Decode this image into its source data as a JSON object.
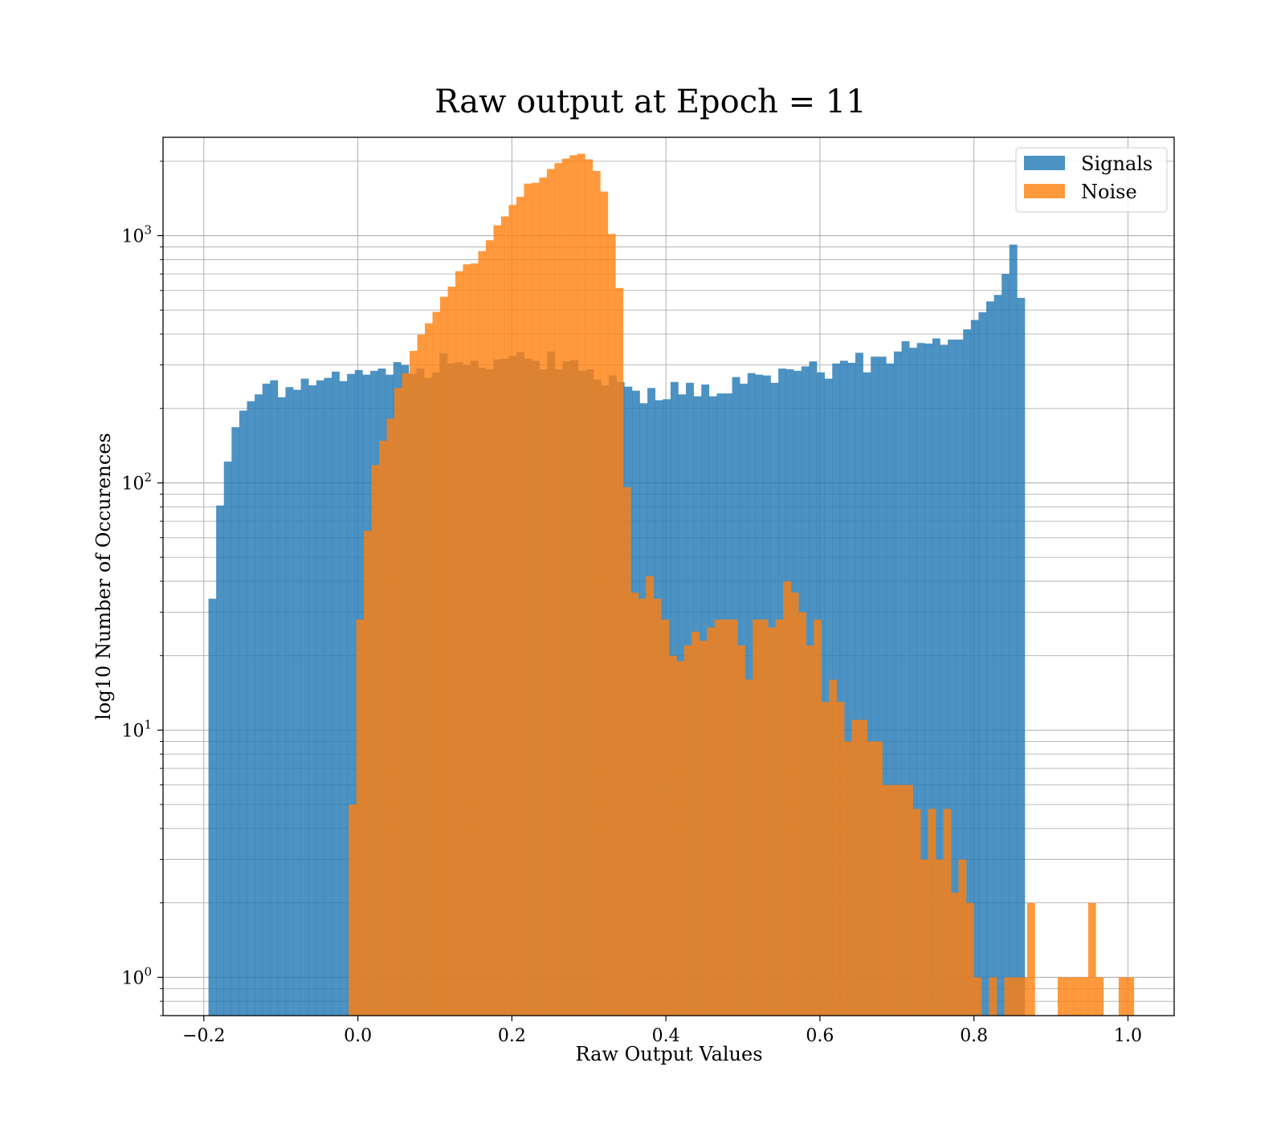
{
  "chart_data": {
    "type": "bar",
    "subtype": "histogram",
    "title": "Raw output at Epoch = 11",
    "xlabel": "Raw Output Values",
    "ylabel": "log10 Number of Occurences",
    "yscale": "log",
    "grid": true,
    "legend_position": "top-right",
    "xlim": [
      -0.253,
      1.06
    ],
    "ylim": [
      0.7,
      2500
    ],
    "x_ticks": [
      -0.2,
      0.0,
      0.2,
      0.4,
      0.6,
      0.8,
      1.0
    ],
    "x_tick_labels": [
      "−0.2",
      "0.0",
      "0.2",
      "0.4",
      "0.6",
      "0.8",
      "1.0"
    ],
    "y_ticks": [
      1,
      10,
      100,
      1000
    ],
    "y_tick_labels": [
      {
        "base": "10",
        "exp": "0"
      },
      {
        "base": "10",
        "exp": "1"
      },
      {
        "base": "10",
        "exp": "2"
      },
      {
        "base": "10",
        "exp": "3"
      }
    ],
    "series": [
      {
        "name": "Signals",
        "color": "#1f77b4",
        "opacity": 0.8,
        "bin_start": -0.194,
        "bin_width": 0.01,
        "counts": [
          34,
          81,
          122,
          168,
          196,
          214,
          228,
          252,
          260,
          222,
          244,
          238,
          264,
          248,
          260,
          266,
          282,
          258,
          276,
          286,
          274,
          284,
          290,
          274,
          308,
          300,
          276,
          290,
          266,
          280,
          334,
          304,
          308,
          300,
          312,
          292,
          288,
          316,
          318,
          326,
          338,
          318,
          312,
          288,
          340,
          288,
          310,
          314,
          284,
          288,
          262,
          248,
          272,
          256,
          245,
          236,
          210,
          242,
          216,
          218,
          256,
          228,
          254,
          224,
          250,
          224,
          230,
          230,
          268,
          252,
          278,
          274,
          272,
          254,
          290,
          288,
          284,
          296,
          310,
          280,
          264,
          304,
          312,
          306,
          336,
          280,
          324,
          324,
          304,
          340,
          374,
          352,
          368,
          366,
          384,
          362,
          380,
          380,
          418,
          456,
          490,
          542,
          576,
          700,
          920,
          560
        ]
      },
      {
        "name": "Noise",
        "color": "#ff7f0e",
        "opacity": 0.8,
        "bin_start": -0.012,
        "bin_width": 0.0099,
        "counts": [
          5,
          28,
          64,
          118,
          148,
          182,
          242,
          278,
          342,
          398,
          442,
          492,
          566,
          622,
          718,
          766,
          772,
          866,
          958,
          1102,
          1196,
          1332,
          1436,
          1624,
          1636,
          1718,
          1860,
          1966,
          2050,
          2116,
          2144,
          2036,
          1826,
          1508,
          1016,
          614,
          96,
          36,
          34,
          42,
          34,
          28,
          20,
          19,
          22,
          25,
          23,
          26,
          28,
          28,
          28,
          22,
          16,
          28,
          28,
          26,
          28,
          40,
          36,
          30,
          22,
          28,
          13,
          16,
          13,
          9,
          11,
          11,
          9,
          9,
          6,
          6,
          6,
          6,
          4.8,
          3,
          4.8,
          3,
          4.8,
          2.2,
          3,
          2,
          1,
          0.4,
          1,
          0.4,
          1,
          1,
          1,
          2,
          0.4,
          0.4,
          0.4,
          1,
          1,
          1,
          1,
          2,
          1,
          0.4,
          0.4,
          1,
          1
        ]
      }
    ]
  }
}
